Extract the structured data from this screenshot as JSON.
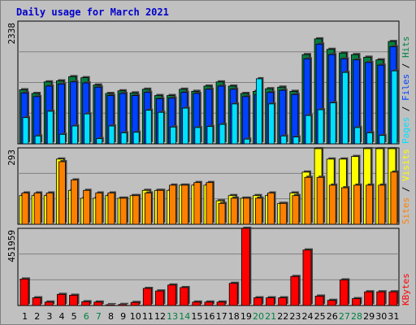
{
  "title": "Daily usage for March 2021",
  "colors": {
    "background": "#c0c0c0",
    "plot_background": "#c0c0c0",
    "title": "#0000cc",
    "hits": "#008040",
    "files": "#0040ff",
    "pages": "#00e0ff",
    "visits": "#ffff00",
    "sites": "#ff8000",
    "kbytes": "#ff0000",
    "weekday_label": "#000000",
    "weekend_label": "#008040"
  },
  "chart_data": [
    {
      "type": "bar",
      "name": "requests",
      "axis_max_label": "2338",
      "ylim": [
        0,
        2338
      ],
      "legend": [
        "Pages",
        "Files",
        "Hits"
      ],
      "x": [
        1,
        2,
        3,
        4,
        5,
        6,
        7,
        8,
        9,
        10,
        11,
        12,
        13,
        14,
        15,
        16,
        17,
        18,
        19,
        20,
        21,
        22,
        23,
        24,
        25,
        26,
        27,
        28,
        29,
        30,
        31
      ],
      "series": [
        {
          "name": "Hits",
          "values": [
            1030,
            960,
            1180,
            1200,
            1280,
            1260,
            1120,
            960,
            1010,
            970,
            1040,
            920,
            920,
            1040,
            1000,
            1100,
            1180,
            1100,
            960,
            1000,
            1050,
            1080,
            1000,
            1700,
            2000,
            1800,
            1730,
            1700,
            1650,
            1600,
            1950
          ]
        },
        {
          "name": "Files",
          "values": [
            970,
            900,
            1100,
            1140,
            1180,
            1160,
            1080,
            920,
            960,
            920,
            980,
            860,
            870,
            980,
            960,
            1040,
            1100,
            1040,
            900,
            940,
            980,
            1020,
            940,
            1620,
            1900,
            1700,
            1620,
            1600,
            1550,
            1500,
            1850
          ]
        },
        {
          "name": "Pages",
          "values": [
            500,
            150,
            620,
            180,
            340,
            570,
            100,
            340,
            210,
            220,
            640,
            600,
            320,
            680,
            310,
            330,
            370,
            760,
            90,
            1240,
            760,
            150,
            130,
            540,
            650,
            780,
            1360,
            310,
            210,
            160,
            1390
          ]
        }
      ]
    },
    {
      "type": "bar",
      "name": "visitors",
      "axis_max_label": "293",
      "ylim": [
        0,
        293
      ],
      "legend": [
        "Sites",
        "Visits"
      ],
      "x": [
        1,
        2,
        3,
        4,
        5,
        6,
        7,
        8,
        9,
        10,
        11,
        12,
        13,
        14,
        15,
        16,
        17,
        18,
        19,
        20,
        21,
        22,
        23,
        24,
        25,
        26,
        27,
        28,
        29,
        30,
        31
      ],
      "series": [
        {
          "name": "Visits",
          "values": [
            110,
            110,
            110,
            250,
            130,
            100,
            100,
            110,
            100,
            110,
            130,
            130,
            130,
            150,
            150,
            150,
            90,
            110,
            100,
            110,
            110,
            80,
            120,
            200,
            290,
            250,
            250,
            260,
            290,
            290,
            290
          ]
        },
        {
          "name": "Sites",
          "values": [
            120,
            120,
            120,
            240,
            170,
            130,
            120,
            120,
            100,
            110,
            120,
            130,
            150,
            150,
            160,
            160,
            80,
            100,
            100,
            100,
            120,
            80,
            110,
            180,
            180,
            150,
            140,
            150,
            150,
            150,
            200
          ]
        }
      ]
    },
    {
      "type": "bar",
      "name": "traffic",
      "axis_max_label": "451959",
      "ylim": [
        0,
        451959
      ],
      "legend": [
        "KBytes"
      ],
      "x": [
        1,
        2,
        3,
        4,
        5,
        6,
        7,
        8,
        9,
        10,
        11,
        12,
        13,
        14,
        15,
        16,
        17,
        18,
        19,
        20,
        21,
        22,
        23,
        24,
        25,
        26,
        27,
        28,
        29,
        30,
        31
      ],
      "series": [
        {
          "name": "KBytes",
          "values": [
            155000,
            45000,
            20000,
            65000,
            60000,
            22000,
            20000,
            5000,
            6000,
            18000,
            100000,
            85000,
            120000,
            105000,
            20000,
            20000,
            20000,
            130000,
            451959,
            45000,
            45000,
            45000,
            170000,
            325000,
            55000,
            30000,
            150000,
            40000,
            80000,
            80000,
            80000
          ]
        }
      ]
    }
  ],
  "day_labels": [
    "1",
    "2",
    "3",
    "4",
    "5",
    "6",
    "7",
    "8",
    "9",
    "10",
    "11",
    "12",
    "13",
    "14",
    "15",
    "16",
    "17",
    "18",
    "19",
    "20",
    "21",
    "22",
    "23",
    "24",
    "25",
    "26",
    "27",
    "28",
    "29",
    "30",
    "31"
  ],
  "weekend_days": [
    6,
    7,
    13,
    14,
    20,
    21,
    27,
    28
  ]
}
